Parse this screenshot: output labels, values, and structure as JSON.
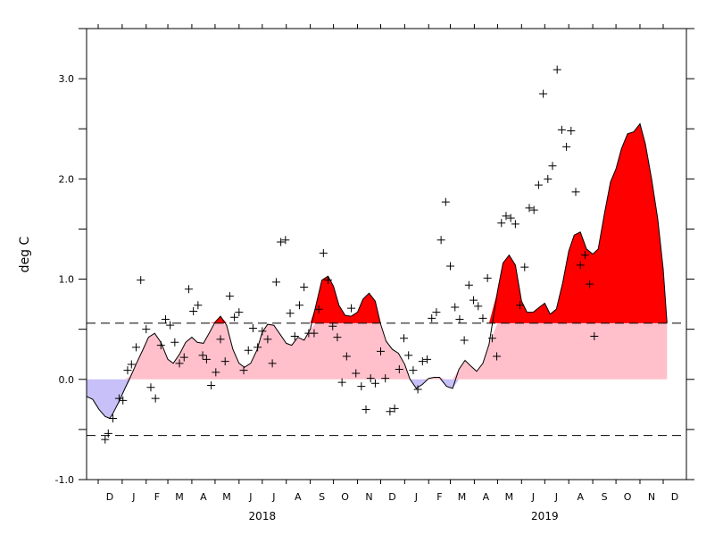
{
  "chart_data": {
    "type": "area",
    "ylabel": "deg C",
    "ylim": [
      -1.0,
      3.5
    ],
    "xlim": [
      "2017-11-16",
      "2019-12-31"
    ],
    "threshold_upper": 0.56,
    "threshold_lower": -0.56,
    "y_ticks": [
      "-1.0",
      "0.0",
      "1.0",
      "2.0",
      "3.0"
    ],
    "y_tick_values": [
      -1.0,
      0.0,
      1.0,
      2.0,
      3.0
    ],
    "y_minor_ticks": [
      -0.5,
      0.5,
      1.5,
      2.5,
      3.5
    ],
    "month_labels": [
      "D",
      "J",
      "F",
      "M",
      "A",
      "M",
      "J",
      "J",
      "A",
      "S",
      "O",
      "N",
      "D",
      "J",
      "F",
      "M",
      "A",
      "M",
      "J",
      "J",
      "A",
      "S",
      "O",
      "N",
      "D"
    ],
    "month_label_dates": [
      "2017-12-16",
      "2018-01-16",
      "2018-02-15",
      "2018-03-16",
      "2018-04-16",
      "2018-05-16",
      "2018-06-16",
      "2018-07-16",
      "2018-08-16",
      "2018-09-16",
      "2018-10-16",
      "2018-11-16",
      "2018-12-16",
      "2019-01-16",
      "2019-02-15",
      "2019-03-16",
      "2019-04-16",
      "2019-05-16",
      "2019-06-16",
      "2019-07-16",
      "2019-08-16",
      "2019-09-16",
      "2019-10-16",
      "2019-11-16",
      "2019-12-16"
    ],
    "year_labels": [
      "2018",
      "2019"
    ],
    "year_label_dates": [
      "2018-07-01",
      "2019-07-01"
    ],
    "colors": {
      "above_upper": "#ff0000",
      "positive": "#ffc0cb",
      "negative": "#c8c0f8",
      "line": "#000000"
    },
    "smoothed": {
      "name": "",
      "points": [
        [
          "2017-11-16",
          -0.17
        ],
        [
          "2017-11-24",
          -0.2
        ],
        [
          "2017-12-02",
          -0.3
        ],
        [
          "2017-12-10",
          -0.37
        ],
        [
          "2017-12-16",
          -0.39
        ],
        [
          "2017-12-20",
          -0.34
        ],
        [
          "2017-12-28",
          -0.22
        ],
        [
          "2018-01-04",
          -0.1
        ],
        [
          "2018-01-12",
          0.03
        ],
        [
          "2018-01-20",
          0.17
        ],
        [
          "2018-01-28",
          0.3
        ],
        [
          "2018-02-04",
          0.42
        ],
        [
          "2018-02-12",
          0.46
        ],
        [
          "2018-02-20",
          0.37
        ],
        [
          "2018-03-01",
          0.2
        ],
        [
          "2018-03-08",
          0.16
        ],
        [
          "2018-03-16",
          0.25
        ],
        [
          "2018-03-24",
          0.37
        ],
        [
          "2018-04-01",
          0.42
        ],
        [
          "2018-04-08",
          0.37
        ],
        [
          "2018-04-16",
          0.36
        ],
        [
          "2018-04-24",
          0.47
        ],
        [
          "2018-05-01",
          0.57
        ],
        [
          "2018-05-08",
          0.63
        ],
        [
          "2018-05-16",
          0.54
        ],
        [
          "2018-05-24",
          0.3
        ],
        [
          "2018-06-01",
          0.16
        ],
        [
          "2018-06-08",
          0.12
        ],
        [
          "2018-06-16",
          0.16
        ],
        [
          "2018-06-24",
          0.29
        ],
        [
          "2018-07-01",
          0.47
        ],
        [
          "2018-07-08",
          0.55
        ],
        [
          "2018-07-16",
          0.54
        ],
        [
          "2018-07-24",
          0.45
        ],
        [
          "2018-08-01",
          0.36
        ],
        [
          "2018-08-08",
          0.34
        ],
        [
          "2018-08-16",
          0.42
        ],
        [
          "2018-08-24",
          0.39
        ],
        [
          "2018-09-01",
          0.5
        ],
        [
          "2018-09-08",
          0.73
        ],
        [
          "2018-09-16",
          0.99
        ],
        [
          "2018-09-24",
          1.03
        ],
        [
          "2018-10-01",
          0.93
        ],
        [
          "2018-10-08",
          0.74
        ],
        [
          "2018-10-16",
          0.64
        ],
        [
          "2018-10-24",
          0.63
        ],
        [
          "2018-11-01",
          0.67
        ],
        [
          "2018-11-08",
          0.8
        ],
        [
          "2018-11-16",
          0.86
        ],
        [
          "2018-11-24",
          0.78
        ],
        [
          "2018-12-01",
          0.55
        ],
        [
          "2018-12-08",
          0.38
        ],
        [
          "2018-12-16",
          0.3
        ],
        [
          "2018-12-24",
          0.26
        ],
        [
          "2019-01-01",
          0.15
        ],
        [
          "2019-01-08",
          0.0
        ],
        [
          "2019-01-16",
          -0.09
        ],
        [
          "2019-01-24",
          -0.05
        ],
        [
          "2019-02-01",
          0.01
        ],
        [
          "2019-02-08",
          0.02
        ],
        [
          "2019-02-15",
          0.02
        ],
        [
          "2019-02-24",
          -0.07
        ],
        [
          "2019-03-04",
          -0.09
        ],
        [
          "2019-03-12",
          0.1
        ],
        [
          "2019-03-20",
          0.19
        ],
        [
          "2019-03-28",
          0.13
        ],
        [
          "2019-04-04",
          0.08
        ],
        [
          "2019-04-12",
          0.16
        ],
        [
          "2019-04-20",
          0.35
        ],
        [
          "2019-05-01",
          0.88
        ],
        [
          "2019-05-08",
          1.16
        ],
        [
          "2019-05-16",
          1.24
        ],
        [
          "2019-05-24",
          1.14
        ],
        [
          "2019-06-01",
          0.78
        ],
        [
          "2019-06-08",
          0.67
        ],
        [
          "2019-06-16",
          0.67
        ],
        [
          "2019-06-24",
          0.72
        ],
        [
          "2019-07-01",
          0.76
        ],
        [
          "2019-07-08",
          0.65
        ],
        [
          "2019-07-16",
          0.7
        ],
        [
          "2019-07-24",
          0.96
        ],
        [
          "2019-08-01",
          1.28
        ],
        [
          "2019-08-08",
          1.44
        ],
        [
          "2019-08-16",
          1.47
        ],
        [
          "2019-08-24",
          1.3
        ],
        [
          "2019-09-01",
          1.25
        ],
        [
          "2019-09-08",
          1.3
        ],
        [
          "2019-09-16",
          1.65
        ],
        [
          "2019-09-24",
          1.97
        ],
        [
          "2019-10-01",
          2.1
        ],
        [
          "2019-10-08",
          2.3
        ],
        [
          "2019-10-16",
          2.45
        ],
        [
          "2019-10-24",
          2.47
        ],
        [
          "2019-11-01",
          2.55
        ],
        [
          "2019-11-08",
          2.35
        ],
        [
          "2019-11-16",
          2.0
        ],
        [
          "2019-11-24",
          1.6
        ],
        [
          "2019-12-01",
          1.1
        ],
        [
          "2019-12-06",
          0.56
        ]
      ]
    },
    "observations": {
      "name": "",
      "points": [
        [
          "2017-12-10",
          -0.6
        ],
        [
          "2017-12-14",
          -0.54
        ],
        [
          "2017-12-20",
          -0.39
        ],
        [
          "2017-12-28",
          -0.19
        ],
        [
          "2018-01-02",
          -0.21
        ],
        [
          "2018-01-08",
          0.09
        ],
        [
          "2018-01-13",
          0.15
        ],
        [
          "2018-01-19",
          0.32
        ],
        [
          "2018-01-25",
          0.99
        ],
        [
          "2018-02-01",
          0.5
        ],
        [
          "2018-02-07",
          -0.08
        ],
        [
          "2018-02-13",
          -0.19
        ],
        [
          "2018-02-20",
          0.34
        ],
        [
          "2018-02-26",
          0.6
        ],
        [
          "2018-03-04",
          0.54
        ],
        [
          "2018-03-10",
          0.37
        ],
        [
          "2018-03-16",
          0.16
        ],
        [
          "2018-03-22",
          0.22
        ],
        [
          "2018-03-28",
          0.9
        ],
        [
          "2018-04-03",
          0.68
        ],
        [
          "2018-04-09",
          0.74
        ],
        [
          "2018-04-15",
          0.24
        ],
        [
          "2018-04-20",
          0.2
        ],
        [
          "2018-04-26",
          -0.06
        ],
        [
          "2018-05-02",
          0.07
        ],
        [
          "2018-05-08",
          0.4
        ],
        [
          "2018-05-14",
          0.18
        ],
        [
          "2018-05-20",
          0.83
        ],
        [
          "2018-05-26",
          0.62
        ],
        [
          "2018-06-01",
          0.67
        ],
        [
          "2018-06-07",
          0.09
        ],
        [
          "2018-06-13",
          0.29
        ],
        [
          "2018-06-19",
          0.51
        ],
        [
          "2018-06-25",
          0.32
        ],
        [
          "2018-07-01",
          0.48
        ],
        [
          "2018-07-08",
          0.4
        ],
        [
          "2018-07-14",
          0.16
        ],
        [
          "2018-07-19",
          0.97
        ],
        [
          "2018-07-25",
          1.37
        ],
        [
          "2018-07-31",
          1.39
        ],
        [
          "2018-08-06",
          0.66
        ],
        [
          "2018-08-12",
          0.43
        ],
        [
          "2018-08-18",
          0.74
        ],
        [
          "2018-08-24",
          0.92
        ],
        [
          "2018-08-30",
          0.46
        ],
        [
          "2018-09-06",
          0.46
        ],
        [
          "2018-09-12",
          0.7
        ],
        [
          "2018-09-18",
          1.26
        ],
        [
          "2018-09-24",
          0.99
        ],
        [
          "2018-09-30",
          0.53
        ],
        [
          "2018-10-06",
          0.42
        ],
        [
          "2018-10-12",
          -0.03
        ],
        [
          "2018-10-18",
          0.23
        ],
        [
          "2018-10-24",
          0.71
        ],
        [
          "2018-10-30",
          0.06
        ],
        [
          "2018-11-06",
          -0.07
        ],
        [
          "2018-11-12",
          -0.3
        ],
        [
          "2018-11-18",
          0.01
        ],
        [
          "2018-11-24",
          -0.04
        ],
        [
          "2018-12-01",
          0.28
        ],
        [
          "2018-12-07",
          0.01
        ],
        [
          "2018-12-13",
          -0.32
        ],
        [
          "2018-12-19",
          -0.29
        ],
        [
          "2018-12-25",
          0.1
        ],
        [
          "2018-12-31",
          0.41
        ],
        [
          "2019-01-06",
          0.24
        ],
        [
          "2019-01-12",
          0.09
        ],
        [
          "2019-01-18",
          -0.1
        ],
        [
          "2019-01-24",
          0.18
        ],
        [
          "2019-01-30",
          0.2
        ],
        [
          "2019-02-05",
          0.61
        ],
        [
          "2019-02-11",
          0.67
        ],
        [
          "2019-02-17",
          1.39
        ],
        [
          "2019-02-23",
          1.77
        ],
        [
          "2019-03-01",
          1.13
        ],
        [
          "2019-03-07",
          0.72
        ],
        [
          "2019-03-13",
          0.6
        ],
        [
          "2019-03-19",
          0.39
        ],
        [
          "2019-03-25",
          0.94
        ],
        [
          "2019-03-31",
          0.79
        ],
        [
          "2019-04-06",
          0.73
        ],
        [
          "2019-04-12",
          0.61
        ],
        [
          "2019-04-18",
          1.01
        ],
        [
          "2019-04-24",
          0.41
        ],
        [
          "2019-04-30",
          0.23
        ],
        [
          "2019-05-06",
          1.56
        ],
        [
          "2019-05-12",
          1.63
        ],
        [
          "2019-05-18",
          1.61
        ],
        [
          "2019-05-24",
          1.55
        ],
        [
          "2019-05-30",
          0.74
        ],
        [
          "2019-06-05",
          1.12
        ],
        [
          "2019-06-11",
          1.71
        ],
        [
          "2019-06-17",
          1.69
        ],
        [
          "2019-06-23",
          1.94
        ],
        [
          "2019-06-29",
          2.85
        ],
        [
          "2019-07-05",
          2.0
        ],
        [
          "2019-07-11",
          2.13
        ],
        [
          "2019-07-17",
          3.09
        ],
        [
          "2019-07-23",
          2.49
        ],
        [
          "2019-07-29",
          2.32
        ],
        [
          "2019-08-04",
          2.48
        ],
        [
          "2019-08-10",
          1.87
        ],
        [
          "2019-08-16",
          1.14
        ],
        [
          "2019-08-22",
          1.24
        ],
        [
          "2019-08-28",
          0.95
        ],
        [
          "2019-09-03",
          0.43
        ]
      ]
    }
  }
}
